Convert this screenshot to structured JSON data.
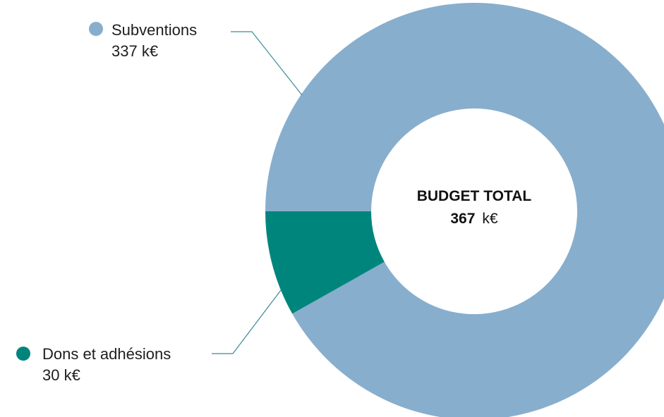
{
  "chart_data": {
    "type": "pie",
    "center": {
      "title": "BUDGET TOTAL",
      "value": "367",
      "unit": "k€"
    },
    "series": [
      {
        "name": "Subventions",
        "value": 337,
        "label": "337 k€",
        "color": "#88aecd"
      },
      {
        "name": "Dons et adhésions",
        "value": 30,
        "label": "30 k€",
        "color": "#00857d"
      }
    ],
    "leader_color": "#3a8a96",
    "legend_placement": "left"
  }
}
